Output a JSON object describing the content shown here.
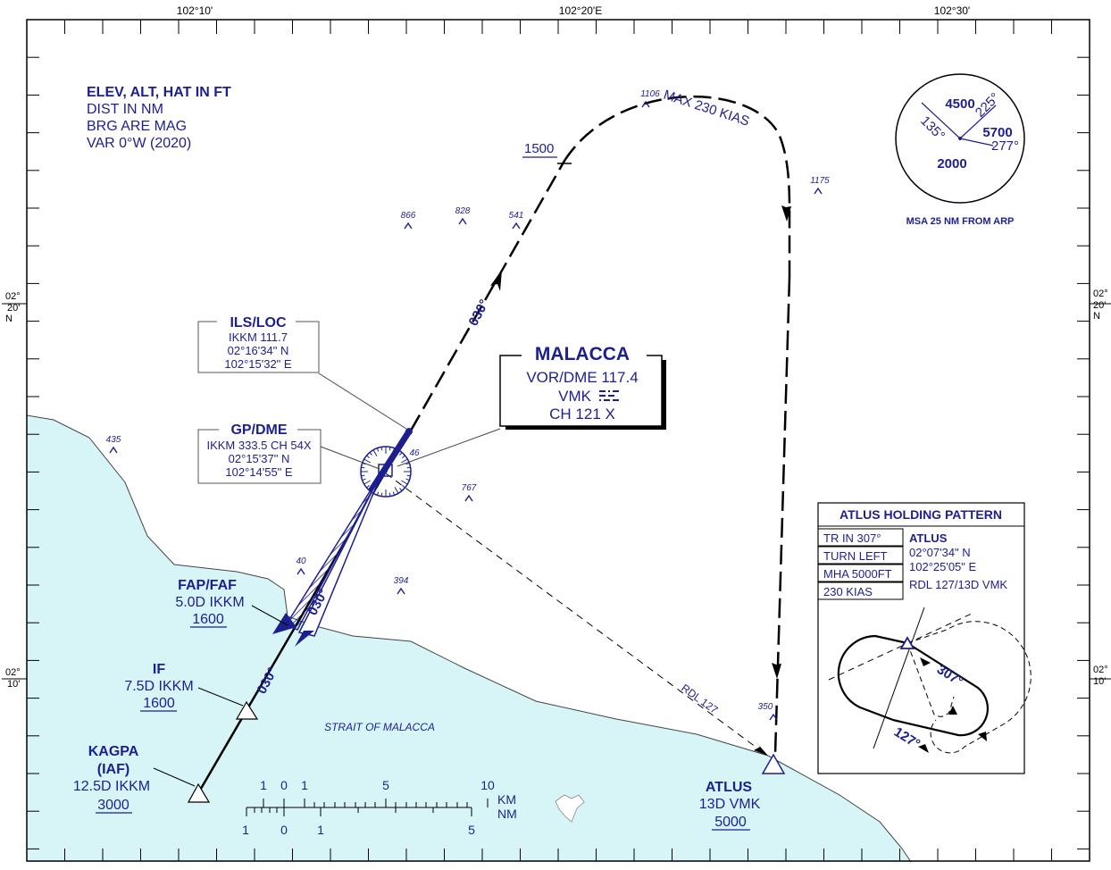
{
  "coords": {
    "top_left": "102°10'",
    "top_mid": "102°20'E",
    "top_right": "102°30'",
    "lat20_deg": "02°",
    "lat20_min": "20'",
    "lat20_hem": "N",
    "lat10_deg": "02°",
    "lat10_min": "10'"
  },
  "notes": {
    "line1": "ELEV, ALT, HAT IN FT",
    "line2": "DIST IN NM",
    "line3": "BRG ARE MAG",
    "line4": "VAR 0°W (2020)"
  },
  "msa": {
    "b135": "135°",
    "b225": "225°",
    "b277": "277°",
    "alt_north": "4500",
    "alt_east": "5700",
    "alt_south": "2000",
    "caption": "MSA 25 NM FROM ARP"
  },
  "ils": {
    "title": "ILS/LOC",
    "line1": "IKKM 111.7",
    "line2": "02°16'34\" N",
    "line3": "102°15'32\" E"
  },
  "gp": {
    "title": "GP/DME",
    "line1": "IKKM 333.5 CH 54X",
    "line2": "02°15'37\" N",
    "line3": "102°14'55\" E"
  },
  "vor": {
    "title": "MALACCA",
    "line1": "VOR/DME 117.4",
    "ident": "VMK",
    "line3": "CH 121 X"
  },
  "route": {
    "alt_1500": "1500",
    "speed": "MAX 230 KIAS",
    "course_out": "030°",
    "course_app": "030°",
    "course_final": "030°",
    "rdl": "RDL 127"
  },
  "fixes": {
    "faf_title": "FAP/FAF",
    "faf_dist": "5.0D IKKM",
    "faf_alt": "1600",
    "if_title": "IF",
    "if_dist": "7.5D IKKM",
    "if_alt": "1600",
    "iaf_name": "KAGPA",
    "iaf_role": "(IAF)",
    "iaf_dist": "12.5D IKKM",
    "iaf_alt": "3000",
    "atlus_name": "ATLUS",
    "atlus_dist": "13D VMK",
    "atlus_alt": "5000"
  },
  "sea": "STRAIT OF MALACCA",
  "elevations": {
    "e1106": "1106",
    "e1175": "1175",
    "e866": "866",
    "e828": "828",
    "e541": "541",
    "e435": "435",
    "e46": "46",
    "e767": "767",
    "e40": "40",
    "e394": "394",
    "e350": "350"
  },
  "holding": {
    "title": "ATLUS HOLDING PATTERN",
    "r1": "TR IN 307°",
    "r2": "TURN LEFT",
    "r3": "MHA 5000FT",
    "r4": "230 KIAS",
    "fix": "ATLUS",
    "lat": "02°07'34\" N",
    "lon": "102°25'05\" E",
    "rdl": "RDL 127/13D VMK",
    "inbound": "307°",
    "outbound": "127°"
  },
  "scale": {
    "km_label": "KM",
    "nm_label": "NM",
    "km1": "1",
    "km0": "0",
    "km1b": "1",
    "km5": "5",
    "km10": "10",
    "nm1": "1",
    "nm0": "0",
    "nm1b": "1",
    "nm5": "5"
  },
  "colors": {
    "sea": "#d7f5f7",
    "route": "#1d1f8f"
  }
}
